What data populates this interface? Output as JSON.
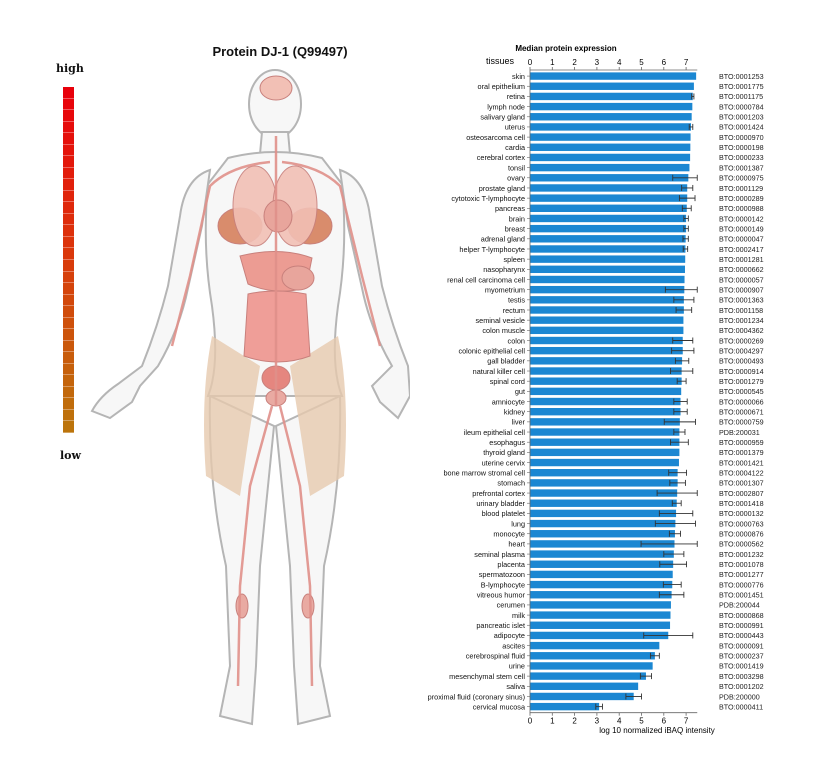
{
  "page": {
    "title": "Protein DJ-1 (Q99497)",
    "scale_high": "high",
    "scale_low": "low",
    "scale_colors": [
      "#e8000b",
      "#e8040b",
      "#e7080b",
      "#e60c0b",
      "#e5100b",
      "#e4140b",
      "#e3180b",
      "#e21c0b",
      "#e1200b",
      "#e0240b",
      "#df280b",
      "#de2c0b",
      "#dd300b",
      "#dc340b",
      "#da380b",
      "#d83c0b",
      "#d6400b",
      "#d4440b",
      "#d2480b",
      "#d04c0b",
      "#ce500b",
      "#cc540b",
      "#ca580b",
      "#c85c0b",
      "#c6600b",
      "#c4640b",
      "#c2680b",
      "#c06c0b",
      "#be700b",
      "#bc740b"
    ]
  },
  "chart_data": {
    "type": "bar",
    "orientation": "horizontal",
    "title": "Median protein expression",
    "ylabel": "tissues",
    "xlabel": "log 10 normalized iBAQ intensity",
    "xlim": [
      0,
      7.5
    ],
    "xticks": [
      0,
      1,
      2,
      3,
      4,
      5,
      6,
      7
    ],
    "bar_color": "#1b87d2",
    "categories": [
      "skin",
      "oral epithelium",
      "retina",
      "lymph node",
      "salivary gland",
      "uterus",
      "osteosarcoma cell",
      "cardia",
      "cerebral cortex",
      "tonsil",
      "ovary",
      "prostate gland",
      "cytotoxic T-lymphocyte",
      "pancreas",
      "brain",
      "breast",
      "adrenal gland",
      "helper T-lymphocyte",
      "spleen",
      "nasopharynx",
      "renal cell carcinoma cell",
      "myometrium",
      "testis",
      "rectum",
      "seminal vesicle",
      "colon muscle",
      "colon",
      "colonic epithelial cell",
      "gall bladder",
      "natural killer cell",
      "spinal cord",
      "gut",
      "amniocyte",
      "kidney",
      "liver",
      "ileum epithelial cell",
      "esophagus",
      "thyroid gland",
      "uterine cervix",
      "bone marrow stromal cell",
      "stomach",
      "prefrontal cortex",
      "urinary bladder",
      "blood platelet",
      "lung",
      "monocyte",
      "heart",
      "seminal plasma",
      "placenta",
      "spermatozoon",
      "B-lymphocyte",
      "vitreous humor",
      "cerumen",
      "milk",
      "pancreatic islet",
      "adipocyte",
      "ascites",
      "cerebrospinal fluid",
      "urine",
      "mesenchymal stem cell",
      "saliva",
      "proximal fluid (coronary sinus)",
      "cervical mucosa"
    ],
    "values": [
      7.45,
      7.35,
      7.3,
      7.28,
      7.25,
      7.22,
      7.2,
      7.19,
      7.18,
      7.15,
      7.1,
      7.05,
      7.05,
      7.03,
      7.0,
      7.0,
      6.98,
      6.97,
      6.96,
      6.95,
      6.93,
      6.92,
      6.9,
      6.9,
      6.88,
      6.88,
      6.85,
      6.85,
      6.82,
      6.8,
      6.8,
      6.78,
      6.75,
      6.75,
      6.72,
      6.7,
      6.7,
      6.7,
      6.68,
      6.62,
      6.62,
      6.6,
      6.58,
      6.55,
      6.52,
      6.5,
      6.48,
      6.45,
      6.42,
      6.4,
      6.38,
      6.35,
      6.32,
      6.3,
      6.28,
      6.2,
      5.8,
      5.6,
      5.5,
      5.2,
      4.85,
      4.65,
      3.1
    ],
    "errors": [
      0,
      0,
      0.05,
      0,
      0,
      0.08,
      0,
      0,
      0,
      0,
      0.7,
      0.25,
      0.35,
      0.2,
      0.1,
      0.1,
      0.12,
      0.1,
      0,
      0,
      0,
      0.85,
      0.45,
      0.35,
      0,
      0,
      0.45,
      0.5,
      0.3,
      0.5,
      0.2,
      0,
      0.3,
      0.3,
      0.7,
      0.25,
      0.4,
      0,
      0,
      0.4,
      0.35,
      0.9,
      0.2,
      0.75,
      0.9,
      0.25,
      1.5,
      0.45,
      0.6,
      0,
      0.4,
      0.55,
      0,
      0,
      0,
      1.1,
      0,
      0.2,
      0,
      0.25,
      0,
      0.35,
      0.15
    ],
    "ids": [
      "BTO:0001253",
      "BTO:0001775",
      "BTO:0001175",
      "BTO:0000784",
      "BTO:0001203",
      "BTO:0001424",
      "BTO:0000970",
      "BTO:0000198",
      "BTO:0000233",
      "BTO:0001387",
      "BTO:0000975",
      "BTO:0001129",
      "BTO:0000289",
      "BTO:0000988",
      "BTO:0000142",
      "BTO:0000149",
      "BTO:0000047",
      "BTO:0002417",
      "BTO:0001281",
      "BTO:0000662",
      "BTO:0000057",
      "BTO:0000907",
      "BTO:0001363",
      "BTO:0001158",
      "BTO:0001234",
      "BTO:0004362",
      "BTO:0000269",
      "BTO:0004297",
      "BTO:0000493",
      "BTO:0000914",
      "BTO:0001279",
      "BTO:0000545",
      "BTO:0000066",
      "BTO:0000671",
      "BTO:0000759",
      "PDB:200031",
      "BTO:0000959",
      "BTO:0001379",
      "BTO:0001421",
      "BTO:0004122",
      "BTO:0001307",
      "BTO:0002807",
      "BTO:0001418",
      "BTO:0000132",
      "BTO:0000763",
      "BTO:0000876",
      "BTO:0000562",
      "BTO:0001232",
      "BTO:0001078",
      "BTO:0001277",
      "BTO:0000776",
      "BTO:0001451",
      "PDB:200044",
      "BTO:0000868",
      "BTO:0000991",
      "BTO:0000443",
      "BTO:0000091",
      "BTO:0000237",
      "BTO:0001419",
      "BTO:0003298",
      "BTO:0001202",
      "PDB:200000",
      "BTO:0000411"
    ]
  }
}
